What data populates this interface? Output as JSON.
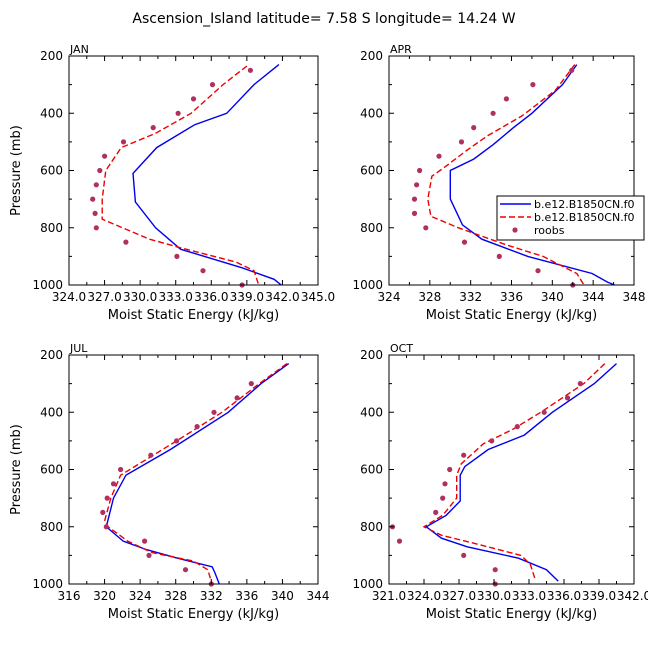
{
  "title": "Ascension_Island  latitude= 7.58 S longitude= 14.24 W",
  "colors": {
    "model1": "#0000ee",
    "model2": "#ee0000",
    "obs": "#b03060"
  },
  "legend": {
    "entries": [
      "b.e12.B1850CN.f0",
      "b.e12.B1850CN.f0",
      "roobs"
    ],
    "placement": "right-middle of APR panel"
  },
  "chart_data": [
    {
      "type": "line",
      "panel_label": "JAN",
      "xlabel": "Moist Static Energy (kJ/kg)",
      "ylabel": "Pressure (mb)",
      "xlim": [
        324,
        345
      ],
      "ylim": [
        1000,
        200
      ],
      "xticks": [
        324.0,
        327.0,
        330.0,
        333.0,
        336.0,
        339.0,
        342.0,
        345.0
      ],
      "xtick_labels": [
        "324.0",
        "327.0",
        "330.0",
        "333.0",
        "336.0",
        "339.0",
        "342.0",
        "345.0"
      ],
      "yticks": [
        200,
        400,
        600,
        800,
        1000
      ],
      "series": [
        {
          "name": "b.e12.B1850CN.f0",
          "style": "solid",
          "color": "model1",
          "points": [
            [
              341.7,
              230
            ],
            [
              339.6,
              300
            ],
            [
              337.3,
              400
            ],
            [
              334.6,
              440
            ],
            [
              331.4,
              520
            ],
            [
              329.4,
              610
            ],
            [
              329.6,
              710
            ],
            [
              331.3,
              800
            ],
            [
              333.4,
              875
            ],
            [
              338.6,
              940
            ],
            [
              341.3,
              980
            ],
            [
              341.9,
              1000
            ]
          ]
        },
        {
          "name": "b.e12.B1850CN.f0",
          "style": "dashed",
          "color": "model2",
          "points": [
            [
              339.0,
              235
            ],
            [
              337.0,
              300
            ],
            [
              334.3,
              400
            ],
            [
              331.3,
              470
            ],
            [
              328.4,
              520
            ],
            [
              327.1,
              600
            ],
            [
              326.8,
              700
            ],
            [
              326.8,
              770
            ],
            [
              330.8,
              840
            ],
            [
              333.4,
              870
            ],
            [
              338.1,
              920
            ],
            [
              339.6,
              950
            ],
            [
              340.0,
              1000
            ]
          ]
        }
      ],
      "obs": [
        [
          339.3,
          250
        ],
        [
          336.1,
          300
        ],
        [
          334.5,
          350
        ],
        [
          333.2,
          400
        ],
        [
          331.1,
          450
        ],
        [
          328.6,
          500
        ],
        [
          327.0,
          550
        ],
        [
          326.6,
          600
        ],
        [
          326.3,
          650
        ],
        [
          326.0,
          700
        ],
        [
          326.2,
          750
        ],
        [
          326.3,
          800
        ],
        [
          328.8,
          850
        ],
        [
          333.1,
          900
        ],
        [
          335.3,
          950
        ],
        [
          338.6,
          1000
        ]
      ]
    },
    {
      "type": "line",
      "panel_label": "APR",
      "xlabel": "Moist Static Energy (kJ/kg)",
      "ylabel": "Pressure (mb)",
      "xlim": [
        324,
        348
      ],
      "ylim": [
        1000,
        200
      ],
      "xticks": [
        324,
        328,
        332,
        336,
        340,
        344,
        348
      ],
      "xtick_labels": [
        "324",
        "328",
        "332",
        "336",
        "340",
        "344",
        "348"
      ],
      "yticks": [
        200,
        400,
        600,
        800,
        1000
      ],
      "series": [
        {
          "name": "b.e12.B1850CN.f0",
          "style": "solid",
          "color": "model1",
          "points": [
            [
              342.4,
              230
            ],
            [
              341.0,
              300
            ],
            [
              338.0,
              400
            ],
            [
              336.2,
              450
            ],
            [
              334.2,
              510
            ],
            [
              332.3,
              560
            ],
            [
              330.0,
              600
            ],
            [
              330.0,
              700
            ],
            [
              331.2,
              790
            ],
            [
              333.1,
              840
            ],
            [
              337.6,
              900
            ],
            [
              343.9,
              960
            ],
            [
              345.4,
              990
            ],
            [
              346.1,
              1000
            ]
          ]
        },
        {
          "name": "b.e12.B1850CN.f0",
          "style": "dashed",
          "color": "model2",
          "points": [
            [
              342.2,
              230
            ],
            [
              340.3,
              320
            ],
            [
              337.0,
              410
            ],
            [
              333.6,
              480
            ],
            [
              331.6,
              530
            ],
            [
              329.4,
              590
            ],
            [
              328.2,
              620
            ],
            [
              327.8,
              700
            ],
            [
              328.1,
              760
            ],
            [
              330.8,
              800
            ],
            [
              335.5,
              860
            ],
            [
              339.1,
              900
            ],
            [
              342.4,
              960
            ],
            [
              343.1,
              1000
            ]
          ]
        }
      ],
      "obs": [
        [
          341.9,
          250
        ],
        [
          338.1,
          300
        ],
        [
          335.5,
          350
        ],
        [
          334.2,
          400
        ],
        [
          332.3,
          450
        ],
        [
          331.1,
          500
        ],
        [
          328.9,
          550
        ],
        [
          327.0,
          600
        ],
        [
          326.7,
          650
        ],
        [
          326.5,
          700
        ],
        [
          326.5,
          750
        ],
        [
          327.6,
          800
        ],
        [
          331.4,
          850
        ],
        [
          334.8,
          900
        ],
        [
          338.6,
          950
        ],
        [
          342.0,
          1000
        ]
      ]
    },
    {
      "type": "line",
      "panel_label": "JUL",
      "xlabel": "Moist Static Energy (kJ/kg)",
      "ylabel": "Pressure (mb)",
      "xlim": [
        316,
        344
      ],
      "ylim": [
        1000,
        200
      ],
      "xticks": [
        316,
        320,
        324,
        328,
        332,
        336,
        340,
        344
      ],
      "xtick_labels": [
        "316",
        "320",
        "324",
        "328",
        "332",
        "336",
        "340",
        "344"
      ],
      "yticks": [
        200,
        400,
        600,
        800,
        1000
      ],
      "series": [
        {
          "name": "b.e12.B1850CN.f0",
          "style": "solid",
          "color": "model1",
          "points": [
            [
              340.7,
              230
            ],
            [
              337.6,
              300
            ],
            [
              333.9,
              400
            ],
            [
              327.4,
              530
            ],
            [
              322.4,
              620
            ],
            [
              321.0,
              700
            ],
            [
              320.2,
              800
            ],
            [
              322.1,
              850
            ],
            [
              324.7,
              880
            ],
            [
              328.2,
              910
            ],
            [
              332.1,
              940
            ],
            [
              332.4,
              960
            ],
            [
              332.9,
              1000
            ]
          ]
        },
        {
          "name": "b.e12.B1850CN.f0",
          "style": "dashed",
          "color": "model2",
          "points": [
            [
              340.5,
              230
            ],
            [
              337.4,
              300
            ],
            [
              333.2,
              400
            ],
            [
              328.1,
              500
            ],
            [
              321.8,
              620
            ],
            [
              320.7,
              700
            ],
            [
              320.0,
              780
            ],
            [
              320.4,
              800
            ],
            [
              322.6,
              850
            ],
            [
              325.3,
              890
            ],
            [
              330.0,
              920
            ],
            [
              331.6,
              950
            ],
            [
              332.1,
              1000
            ]
          ]
        }
      ],
      "obs": [
        [
          336.5,
          300
        ],
        [
          334.9,
          350
        ],
        [
          332.3,
          400
        ],
        [
          330.4,
          450
        ],
        [
          328.1,
          500
        ],
        [
          325.2,
          550
        ],
        [
          321.8,
          600
        ],
        [
          321.0,
          650
        ],
        [
          320.3,
          700
        ],
        [
          319.8,
          750
        ],
        [
          320.2,
          800
        ],
        [
          324.5,
          850
        ],
        [
          325.0,
          900
        ],
        [
          329.1,
          950
        ],
        [
          332.0,
          1000
        ]
      ]
    },
    {
      "type": "line",
      "panel_label": "OCT",
      "xlabel": "Moist Static Energy (kJ/kg)",
      "ylabel": "Pressure (mb)",
      "xlim": [
        321,
        342
      ],
      "ylim": [
        1000,
        200
      ],
      "xticks": [
        321.0,
        324.0,
        327.0,
        330.0,
        333.0,
        336.0,
        339.0,
        342.0
      ],
      "xtick_labels": [
        "321.0",
        "324.0",
        "327.0",
        "330.0",
        "333.0",
        "336.0",
        "339.0",
        "342.0"
      ],
      "yticks": [
        200,
        400,
        600,
        800,
        1000
      ],
      "series": [
        {
          "name": "b.e12.B1850CN.f0",
          "style": "solid",
          "color": "model1",
          "points": [
            [
              340.5,
              230
            ],
            [
              338.6,
              300
            ],
            [
              335.0,
              400
            ],
            [
              332.6,
              480
            ],
            [
              329.5,
              530
            ],
            [
              327.5,
              590
            ],
            [
              327.1,
              620
            ],
            [
              327.1,
              710
            ],
            [
              325.9,
              760
            ],
            [
              324.2,
              800
            ],
            [
              325.5,
              840
            ],
            [
              327.7,
              870
            ],
            [
              332.1,
              910
            ],
            [
              334.5,
              950
            ],
            [
              335.5,
              990
            ]
          ]
        },
        {
          "name": "b.e12.B1850CN.f0",
          "style": "dashed",
          "color": "model2",
          "points": [
            [
              339.5,
              230
            ],
            [
              337.7,
              300
            ],
            [
              334.0,
              400
            ],
            [
              331.6,
              460
            ],
            [
              329.1,
              510
            ],
            [
              327.2,
              580
            ],
            [
              326.8,
              620
            ],
            [
              326.8,
              700
            ],
            [
              325.6,
              760
            ],
            [
              324.0,
              800
            ],
            [
              325.5,
              830
            ],
            [
              328.5,
              860
            ],
            [
              332.3,
              900
            ],
            [
              333.1,
              930
            ],
            [
              333.5,
              980
            ]
          ]
        }
      ],
      "obs": [
        [
          337.4,
          300
        ],
        [
          336.3,
          350
        ],
        [
          334.3,
          400
        ],
        [
          332.0,
          450
        ],
        [
          329.8,
          500
        ],
        [
          327.4,
          550
        ],
        [
          326.2,
          600
        ],
        [
          325.8,
          650
        ],
        [
          325.6,
          700
        ],
        [
          325.0,
          750
        ],
        [
          321.3,
          800
        ],
        [
          321.9,
          850
        ],
        [
          327.4,
          900
        ],
        [
          330.1,
          950
        ],
        [
          330.1,
          1000
        ]
      ]
    }
  ]
}
